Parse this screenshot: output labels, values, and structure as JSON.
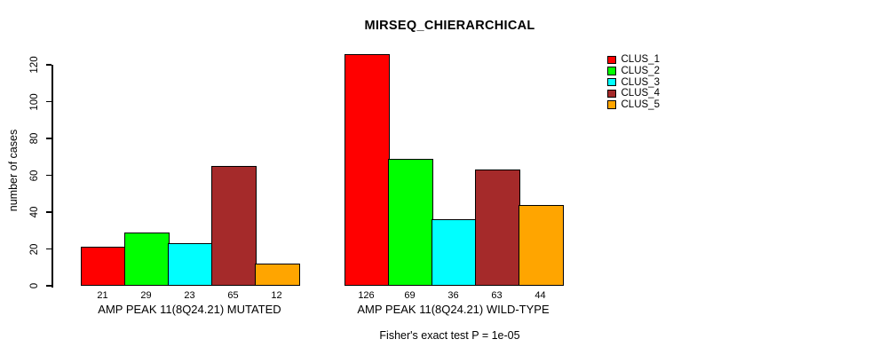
{
  "chart_data": {
    "type": "bar",
    "title": "MIRSEQ_CHIERARCHICAL",
    "ylabel": "number of cases",
    "xlabel": "",
    "ylim": [
      0,
      120
    ],
    "yticks": [
      0,
      20,
      40,
      60,
      80,
      100,
      120
    ],
    "grid": false,
    "legend_position": "right",
    "groups": [
      {
        "label": "AMP PEAK 11(8Q24.21) MUTATED",
        "values": [
          21,
          29,
          23,
          65,
          12
        ]
      },
      {
        "label": "AMP PEAK 11(8Q24.21) WILD-TYPE",
        "values": [
          126,
          69,
          36,
          63,
          44
        ]
      }
    ],
    "series": [
      {
        "name": "CLUS_1",
        "color": "#FF0000"
      },
      {
        "name": "CLUS_2",
        "color": "#00FF00"
      },
      {
        "name": "CLUS_3",
        "color": "#00FFFF"
      },
      {
        "name": "CLUS_4",
        "color": "#A52A2A"
      },
      {
        "name": "CLUS_5",
        "color": "#FFA500"
      }
    ],
    "annotation": "Fisher's exact test P = 1e-05",
    "axis_color": "#000000",
    "background_color": "#FFFFFF"
  }
}
